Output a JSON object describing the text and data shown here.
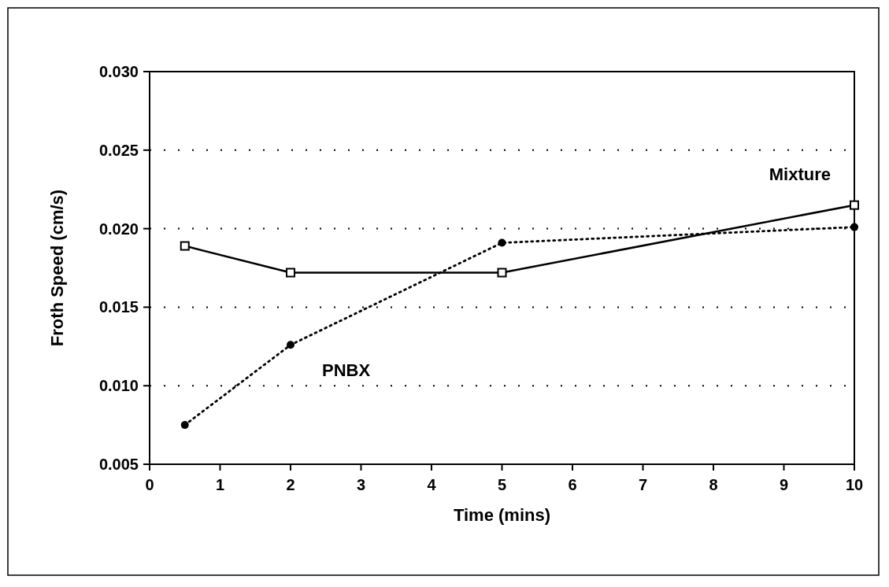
{
  "chart_data": {
    "type": "line",
    "xlabel": "Time (mins)",
    "ylabel": "Froth Speed (cm/s)",
    "xlim": [
      0,
      10
    ],
    "xticks": [
      0,
      1,
      2,
      3,
      4,
      5,
      6,
      7,
      8,
      9,
      10
    ],
    "ylim": [
      0.005,
      0.03
    ],
    "yticks": [
      {
        "value": 0.005,
        "label": "0.005"
      },
      {
        "value": 0.01,
        "label": "0.010"
      },
      {
        "value": 0.015,
        "label": "0.015"
      },
      {
        "value": 0.02,
        "label": "0.020"
      },
      {
        "value": 0.025,
        "label": "0.025"
      },
      {
        "value": 0.03,
        "label": "0.030"
      }
    ],
    "grid": "y",
    "x": [
      0.5,
      2,
      5,
      10
    ],
    "series": [
      {
        "name": "Mixture",
        "color": "#000000",
        "marker": "square",
        "line_style": "solid",
        "values": [
          0.0189,
          0.0172,
          0.0172,
          0.0215
        ]
      },
      {
        "name": "PNBX",
        "color": "#000000",
        "marker": "circle",
        "line_style": "dotted",
        "values": [
          0.0075,
          0.0126,
          0.0191,
          0.0201
        ]
      }
    ]
  }
}
